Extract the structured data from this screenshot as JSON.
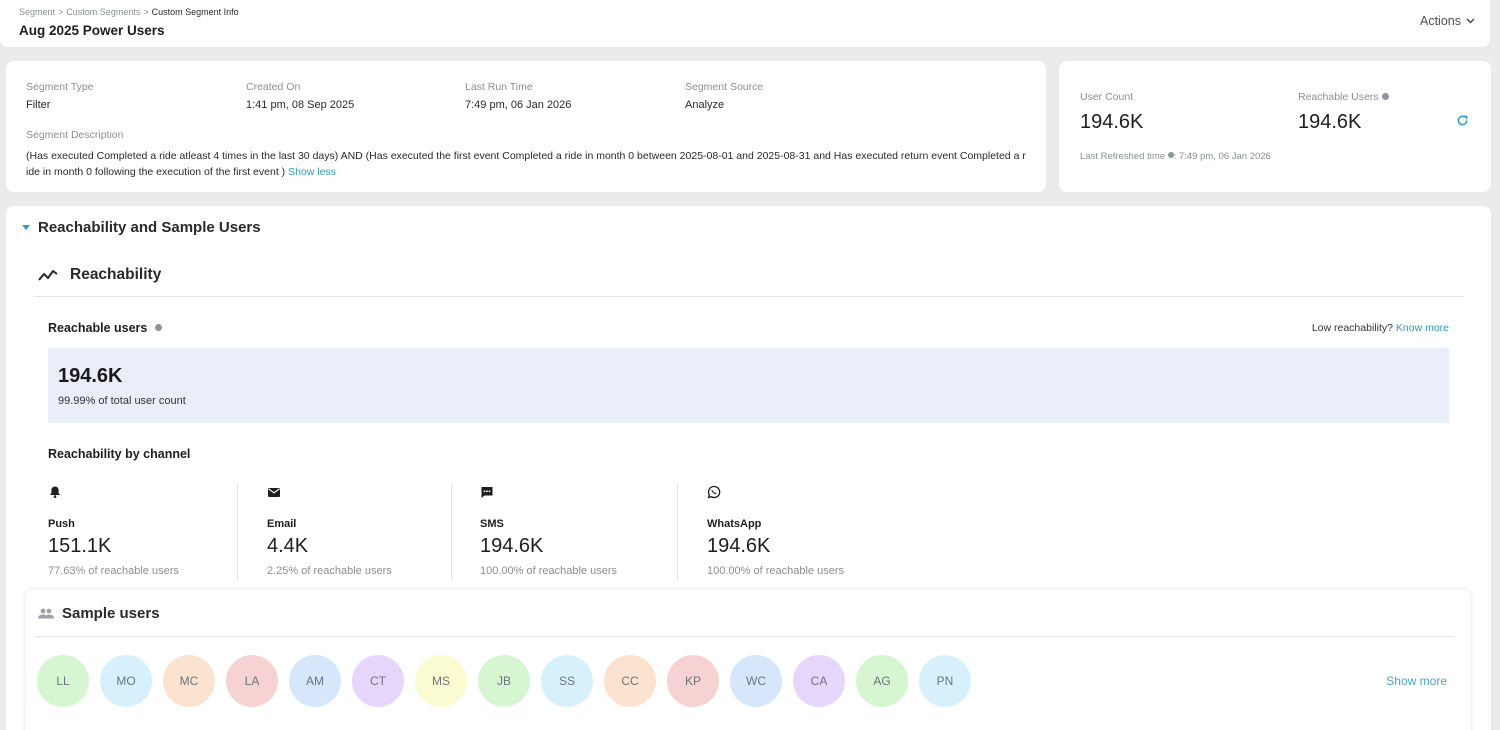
{
  "breadcrumb": {
    "items": [
      "Segment",
      "Custom Segments",
      "Custom Segment Info"
    ],
    "sep": ">"
  },
  "page_title": "Aug 2025 Power Users",
  "actions_label": "Actions",
  "info": {
    "segment_type": {
      "label": "Segment Type",
      "value": "Filter"
    },
    "created_on": {
      "label": "Created On",
      "value": "1:41 pm, 08 Sep 2025"
    },
    "last_run": {
      "label": "Last Run Time",
      "value": "7:49 pm, 06 Jan 2026"
    },
    "source": {
      "label": "Segment Source",
      "value": "Analyze"
    },
    "description_label": "Segment Description",
    "description": "(Has executed Completed a ride atleast 4 times in the last 30 days) AND (Has executed the first event Completed a ride in month 0 between 2025-08-01 and 2025-08-31 and Has executed return event Completed a ride in month 0 following the execution of the first event  )",
    "show_less": "Show less"
  },
  "counts": {
    "user_count_label": "User Count",
    "user_count": "194.6K",
    "reachable_label": "Reachable Users",
    "reachable": "194.6K",
    "refreshed_label": "Last Refreshed time",
    "refreshed_value": ": 7:49 pm, 06 Jan 2026"
  },
  "section_title": "Reachability and Sample Users",
  "reachability": {
    "title": "Reachability",
    "reachable_users_label": "Reachable users",
    "low_text": "Low reachability?",
    "know_more": "Know more",
    "total": "194.6K",
    "total_pct": "99.99% of total user count",
    "by_channel_label": "Reachability by channel",
    "channels": [
      {
        "name": "Push",
        "value": "151.1K",
        "pct": "77.63% of reachable users",
        "icon": "bell-icon"
      },
      {
        "name": "Email",
        "value": "4.4K",
        "pct": "2.25% of reachable users",
        "icon": "mail-icon"
      },
      {
        "name": "SMS",
        "value": "194.6K",
        "pct": "100.00% of reachable users",
        "icon": "chat-icon"
      },
      {
        "name": "WhatsApp",
        "value": "194.6K",
        "pct": "100.00% of reachable users",
        "icon": "whatsapp-icon"
      }
    ]
  },
  "sample": {
    "title": "Sample users",
    "show_more": "Show more",
    "users": [
      {
        "initials": "LL",
        "color": "#d6f5d1"
      },
      {
        "initials": "MO",
        "color": "#d6f1fb"
      },
      {
        "initials": "MC",
        "color": "#fbe3cf"
      },
      {
        "initials": "LA",
        "color": "#f7d2d2"
      },
      {
        "initials": "AM",
        "color": "#d6e6fb"
      },
      {
        "initials": "CT",
        "color": "#e7d6fb"
      },
      {
        "initials": "MS",
        "color": "#fbfbd2"
      },
      {
        "initials": "JB",
        "color": "#d6f5d1"
      },
      {
        "initials": "SS",
        "color": "#d6f1fb"
      },
      {
        "initials": "CC",
        "color": "#fbe3cf"
      },
      {
        "initials": "KP",
        "color": "#f7d2d2"
      },
      {
        "initials": "WC",
        "color": "#d6e6fb"
      },
      {
        "initials": "CA",
        "color": "#e7d6fb"
      },
      {
        "initials": "AG",
        "color": "#d6f5d1"
      },
      {
        "initials": "PN",
        "color": "#d6f1fb"
      }
    ]
  },
  "colors": {
    "accent": "#2e9cc2",
    "reach_box": "#e9eef8"
  }
}
